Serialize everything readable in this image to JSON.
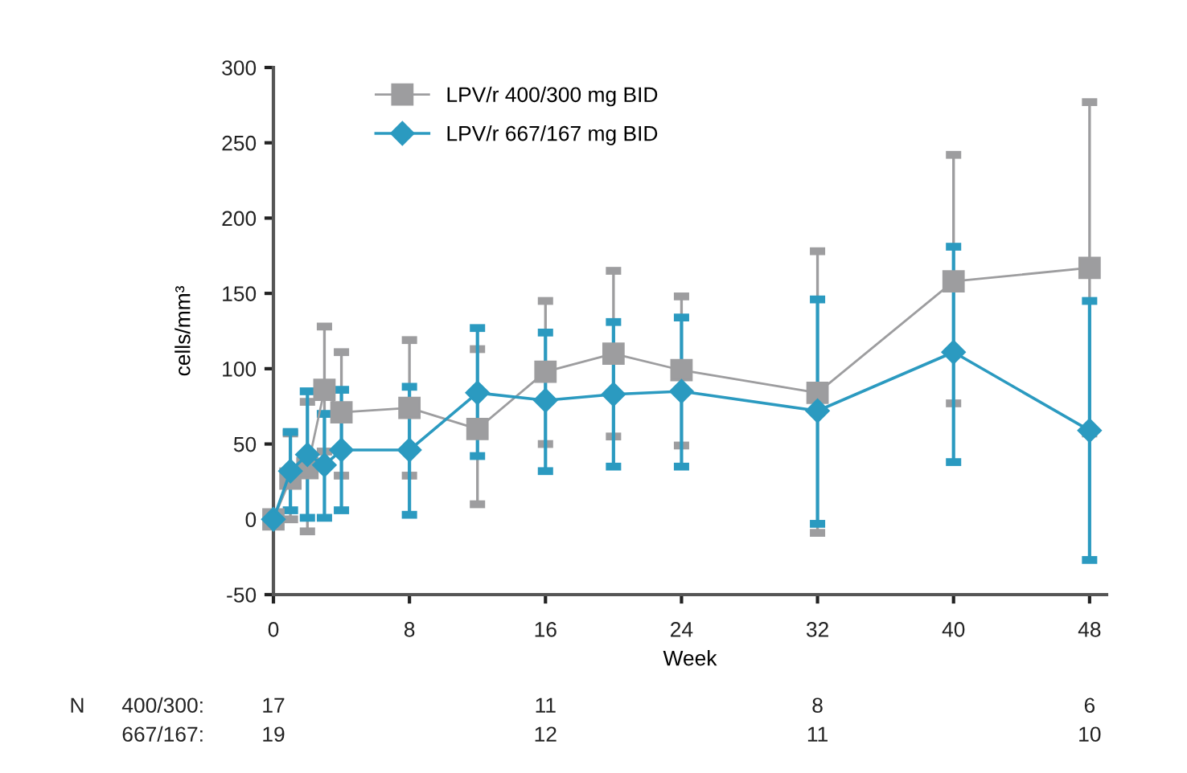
{
  "chart_data": {
    "type": "line",
    "xlabel": "Week",
    "ylabel": "cells/mm³",
    "xlim": [
      0,
      49
    ],
    "xticks": [
      0,
      8,
      16,
      24,
      32,
      40,
      48
    ],
    "ylim": [
      -50,
      300
    ],
    "yticks": [
      -50,
      0,
      50,
      100,
      150,
      200,
      250,
      300
    ],
    "grid": false,
    "legend": "top left",
    "series": [
      {
        "name": "LPV/r 400/300 mg BID",
        "color": "#9d9d9f",
        "marker": "square",
        "x": [
          0,
          1,
          2,
          3,
          4,
          8,
          12,
          16,
          20,
          24,
          32,
          40,
          48
        ],
        "values": [
          0,
          27,
          34,
          86,
          71,
          74,
          60,
          98,
          110,
          99,
          84,
          158,
          167
        ],
        "errors": [
          null,
          [
            0,
            57
          ],
          [
            -8,
            78
          ],
          [
            45,
            128
          ],
          [
            29,
            111
          ],
          [
            29,
            119
          ],
          [
            10,
            113
          ],
          [
            50,
            145
          ],
          [
            55,
            165
          ],
          [
            49,
            148
          ],
          [
            -9,
            178
          ],
          [
            77,
            242
          ],
          [
            57,
            277
          ]
        ]
      },
      {
        "name": "LPV/r 667/167 mg BID",
        "color": "#2b9ac0",
        "marker": "diamond",
        "x": [
          0,
          1,
          2,
          3,
          4,
          8,
          12,
          16,
          20,
          24,
          32,
          40,
          48
        ],
        "values": [
          0,
          32,
          43,
          36,
          46,
          46,
          84,
          79,
          83,
          85,
          72,
          111,
          59
        ],
        "errors": [
          null,
          [
            6,
            58
          ],
          [
            1,
            85
          ],
          [
            1,
            70
          ],
          [
            6,
            86
          ],
          [
            3,
            88
          ],
          [
            42,
            127
          ],
          [
            32,
            124
          ],
          [
            35,
            131
          ],
          [
            35,
            134
          ],
          [
            -3,
            146
          ],
          [
            38,
            181
          ],
          [
            -27,
            145
          ]
        ]
      }
    ],
    "annotations": [
      "N",
      "400/300:",
      "17",
      "11",
      "8",
      "6",
      "667/167:",
      "19",
      "12",
      "11",
      "10"
    ]
  }
}
